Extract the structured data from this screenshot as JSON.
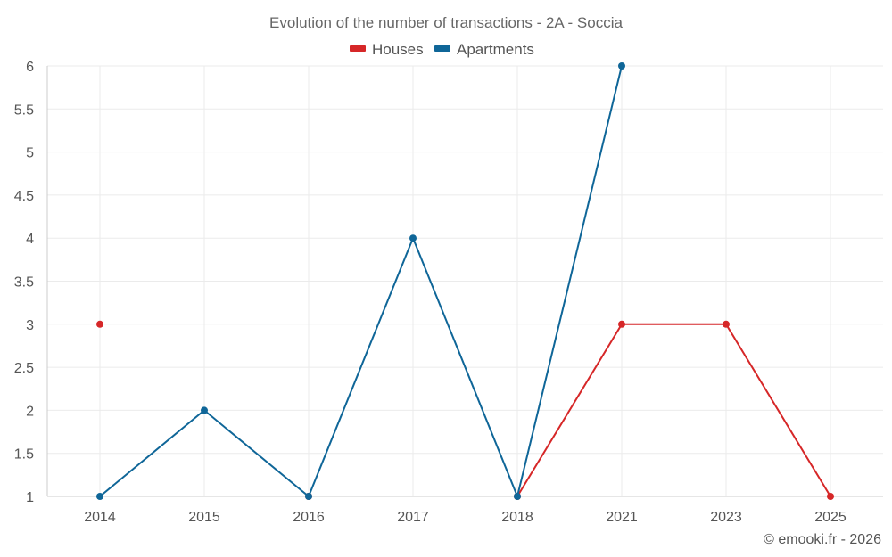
{
  "chart_data": {
    "type": "line",
    "title": "Evolution of the number of transactions - 2A - Soccia",
    "xlabel": "",
    "ylabel": "",
    "categories": [
      "2014",
      "2015",
      "2016",
      "2017",
      "2018",
      "2021",
      "2023",
      "2025"
    ],
    "ylim": [
      1,
      6
    ],
    "yticks": [
      "1",
      "1.5",
      "2",
      "2.5",
      "3",
      "3.5",
      "4",
      "4.5",
      "5",
      "5.5",
      "6"
    ],
    "grid": true,
    "legend_position": "top-center",
    "series": [
      {
        "name": "Houses",
        "color": "#d62728",
        "values": [
          3,
          null,
          1,
          null,
          1,
          3,
          3,
          1
        ]
      },
      {
        "name": "Apartments",
        "color": "#0f6698",
        "values": [
          1,
          2,
          1,
          4,
          1,
          6,
          null,
          null
        ]
      }
    ]
  },
  "footer": {
    "copyright": "© emooki.fr - 2026"
  }
}
